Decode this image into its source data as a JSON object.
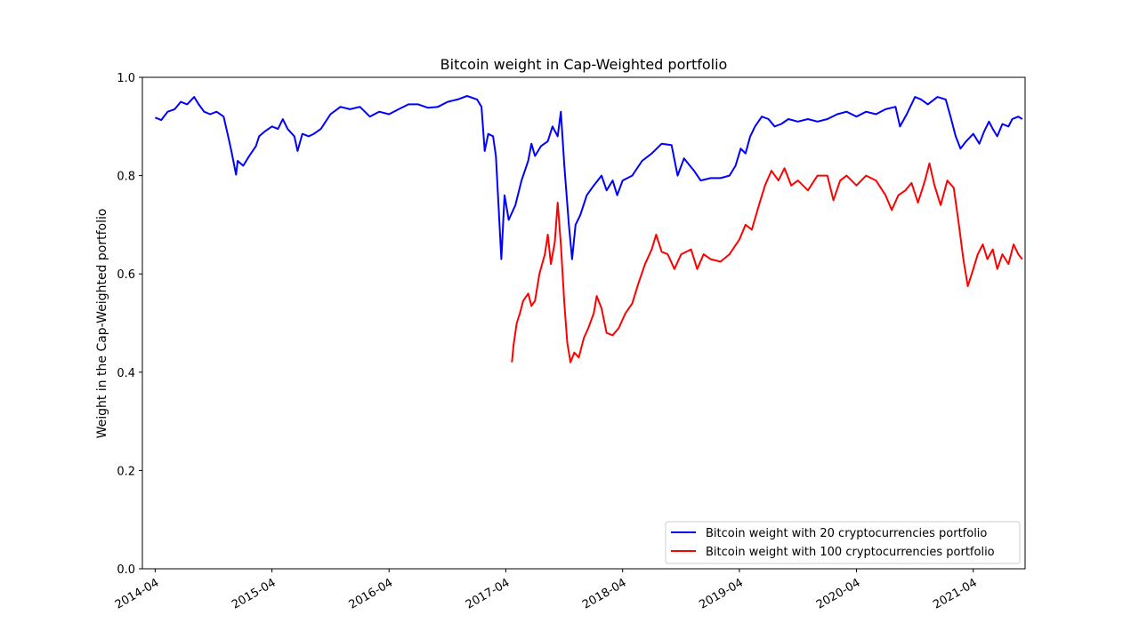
{
  "chart_data": {
    "type": "line",
    "title": "Bitcoin weight in Cap-Weighted portfolio",
    "xlabel": "",
    "ylabel": "Weight in the Cap-Weighted portfolio",
    "ylim": [
      0,
      1.0
    ],
    "xlim": [
      "2014-02-20",
      "2021-09-10"
    ],
    "x_ticks": [
      "2014-04",
      "2015-04",
      "2016-04",
      "2017-04",
      "2018-04",
      "2019-04",
      "2020-04",
      "2021-04"
    ],
    "y_ticks": [
      {
        "value": 0.0,
        "label": "0.0"
      },
      {
        "value": 0.2,
        "label": "0.2"
      },
      {
        "value": 0.4,
        "label": "0.4"
      },
      {
        "value": 0.6,
        "label": "0.6"
      },
      {
        "value": 0.8,
        "label": "0.8"
      },
      {
        "value": 1.0,
        "label": "1.0"
      }
    ],
    "grid": false,
    "legend_position": "lower-right",
    "series": [
      {
        "name": "Bitcoin weight with 20 cryptocurrencies portfolio",
        "color": "#0000ff",
        "points": [
          [
            "2014-04-01",
            0.918
          ],
          [
            "2014-04-20",
            0.913
          ],
          [
            "2014-05-10",
            0.93
          ],
          [
            "2014-06-01",
            0.935
          ],
          [
            "2014-06-20",
            0.95
          ],
          [
            "2014-07-10",
            0.945
          ],
          [
            "2014-08-01",
            0.96
          ],
          [
            "2014-08-15",
            0.945
          ],
          [
            "2014-09-01",
            0.93
          ],
          [
            "2014-09-20",
            0.925
          ],
          [
            "2014-10-10",
            0.93
          ],
          [
            "2014-11-01",
            0.92
          ],
          [
            "2014-11-15",
            0.88
          ],
          [
            "2014-11-25",
            0.85
          ],
          [
            "2014-12-10",
            0.802
          ],
          [
            "2014-12-15",
            0.83
          ],
          [
            "2015-01-01",
            0.82
          ],
          [
            "2015-01-20",
            0.84
          ],
          [
            "2015-02-10",
            0.86
          ],
          [
            "2015-02-20",
            0.88
          ],
          [
            "2015-03-10",
            0.89
          ],
          [
            "2015-04-01",
            0.9
          ],
          [
            "2015-04-20",
            0.895
          ],
          [
            "2015-05-05",
            0.915
          ],
          [
            "2015-05-20",
            0.895
          ],
          [
            "2015-06-10",
            0.88
          ],
          [
            "2015-06-20",
            0.85
          ],
          [
            "2015-07-05",
            0.885
          ],
          [
            "2015-07-25",
            0.88
          ],
          [
            "2015-08-10",
            0.885
          ],
          [
            "2015-09-01",
            0.895
          ],
          [
            "2015-10-01",
            0.925
          ],
          [
            "2015-11-01",
            0.94
          ],
          [
            "2015-12-01",
            0.935
          ],
          [
            "2016-01-01",
            0.94
          ],
          [
            "2016-02-01",
            0.92
          ],
          [
            "2016-03-01",
            0.93
          ],
          [
            "2016-04-01",
            0.925
          ],
          [
            "2016-05-01",
            0.935
          ],
          [
            "2016-06-01",
            0.945
          ],
          [
            "2016-07-01",
            0.945
          ],
          [
            "2016-08-01",
            0.938
          ],
          [
            "2016-09-01",
            0.94
          ],
          [
            "2016-10-01",
            0.95
          ],
          [
            "2016-11-01",
            0.955
          ],
          [
            "2016-12-01",
            0.962
          ],
          [
            "2017-01-01",
            0.955
          ],
          [
            "2017-01-15",
            0.94
          ],
          [
            "2017-01-25",
            0.85
          ],
          [
            "2017-02-05",
            0.885
          ],
          [
            "2017-02-20",
            0.88
          ],
          [
            "2017-03-01",
            0.84
          ],
          [
            "2017-03-10",
            0.73
          ],
          [
            "2017-03-18",
            0.63
          ],
          [
            "2017-03-28",
            0.76
          ],
          [
            "2017-04-10",
            0.71
          ],
          [
            "2017-05-01",
            0.74
          ],
          [
            "2017-05-20",
            0.79
          ],
          [
            "2017-06-10",
            0.83
          ],
          [
            "2017-06-20",
            0.865
          ],
          [
            "2017-07-01",
            0.84
          ],
          [
            "2017-07-20",
            0.86
          ],
          [
            "2017-08-10",
            0.87
          ],
          [
            "2017-08-25",
            0.9
          ],
          [
            "2017-09-10",
            0.88
          ],
          [
            "2017-09-20",
            0.93
          ],
          [
            "2017-10-01",
            0.82
          ],
          [
            "2017-10-15",
            0.7
          ],
          [
            "2017-10-25",
            0.63
          ],
          [
            "2017-11-05",
            0.7
          ],
          [
            "2017-11-20",
            0.72
          ],
          [
            "2017-12-10",
            0.76
          ],
          [
            "2018-01-01",
            0.78
          ],
          [
            "2018-01-25",
            0.8
          ],
          [
            "2018-02-10",
            0.77
          ],
          [
            "2018-03-01",
            0.79
          ],
          [
            "2018-03-15",
            0.76
          ],
          [
            "2018-04-01",
            0.79
          ],
          [
            "2018-05-01",
            0.8
          ],
          [
            "2018-06-01",
            0.83
          ],
          [
            "2018-07-01",
            0.845
          ],
          [
            "2018-08-01",
            0.865
          ],
          [
            "2018-09-01",
            0.862
          ],
          [
            "2018-09-20",
            0.8
          ],
          [
            "2018-10-10",
            0.835
          ],
          [
            "2018-11-10",
            0.81
          ],
          [
            "2018-12-01",
            0.79
          ],
          [
            "2019-01-01",
            0.795
          ],
          [
            "2019-02-01",
            0.795
          ],
          [
            "2019-03-01",
            0.8
          ],
          [
            "2019-03-20",
            0.82
          ],
          [
            "2019-04-05",
            0.855
          ],
          [
            "2019-04-20",
            0.845
          ],
          [
            "2019-05-05",
            0.88
          ],
          [
            "2019-05-20",
            0.9
          ],
          [
            "2019-06-10",
            0.92
          ],
          [
            "2019-07-01",
            0.915
          ],
          [
            "2019-07-20",
            0.9
          ],
          [
            "2019-08-10",
            0.905
          ],
          [
            "2019-09-01",
            0.915
          ],
          [
            "2019-10-01",
            0.91
          ],
          [
            "2019-11-01",
            0.915
          ],
          [
            "2019-12-01",
            0.91
          ],
          [
            "2020-01-01",
            0.915
          ],
          [
            "2020-02-01",
            0.925
          ],
          [
            "2020-03-01",
            0.93
          ],
          [
            "2020-04-01",
            0.92
          ],
          [
            "2020-05-01",
            0.93
          ],
          [
            "2020-06-01",
            0.925
          ],
          [
            "2020-07-01",
            0.935
          ],
          [
            "2020-08-01",
            0.94
          ],
          [
            "2020-08-15",
            0.9
          ],
          [
            "2020-09-05",
            0.925
          ],
          [
            "2020-10-01",
            0.96
          ],
          [
            "2020-10-20",
            0.955
          ],
          [
            "2020-11-10",
            0.945
          ],
          [
            "2020-12-10",
            0.96
          ],
          [
            "2021-01-05",
            0.955
          ],
          [
            "2021-01-20",
            0.92
          ],
          [
            "2021-02-05",
            0.88
          ],
          [
            "2021-02-20",
            0.855
          ],
          [
            "2021-03-10",
            0.87
          ],
          [
            "2021-04-01",
            0.885
          ],
          [
            "2021-04-20",
            0.865
          ],
          [
            "2021-05-05",
            0.89
          ],
          [
            "2021-05-20",
            0.91
          ],
          [
            "2021-06-01",
            0.895
          ],
          [
            "2021-06-15",
            0.88
          ],
          [
            "2021-07-01",
            0.905
          ],
          [
            "2021-07-20",
            0.9
          ],
          [
            "2021-08-01",
            0.915
          ],
          [
            "2021-08-20",
            0.92
          ],
          [
            "2021-09-01",
            0.915
          ]
        ]
      },
      {
        "name": "Bitcoin weight with 100 cryptocurrencies portfolio",
        "color": "#ff0000",
        "points": [
          [
            "2017-04-20",
            0.42
          ],
          [
            "2017-04-25",
            0.455
          ],
          [
            "2017-05-05",
            0.5
          ],
          [
            "2017-05-15",
            0.52
          ],
          [
            "2017-05-25",
            0.545
          ],
          [
            "2017-06-10",
            0.56
          ],
          [
            "2017-06-20",
            0.535
          ],
          [
            "2017-07-01",
            0.545
          ],
          [
            "2017-07-15",
            0.6
          ],
          [
            "2017-08-01",
            0.64
          ],
          [
            "2017-08-10",
            0.68
          ],
          [
            "2017-08-20",
            0.62
          ],
          [
            "2017-09-01",
            0.665
          ],
          [
            "2017-09-10",
            0.745
          ],
          [
            "2017-09-20",
            0.66
          ],
          [
            "2017-10-01",
            0.54
          ],
          [
            "2017-10-10",
            0.46
          ],
          [
            "2017-10-20",
            0.42
          ],
          [
            "2017-11-01",
            0.44
          ],
          [
            "2017-11-15",
            0.43
          ],
          [
            "2017-12-01",
            0.47
          ],
          [
            "2017-12-15",
            0.49
          ],
          [
            "2018-01-01",
            0.52
          ],
          [
            "2018-01-10",
            0.555
          ],
          [
            "2018-01-25",
            0.53
          ],
          [
            "2018-02-10",
            0.48
          ],
          [
            "2018-03-01",
            0.475
          ],
          [
            "2018-03-20",
            0.49
          ],
          [
            "2018-04-10",
            0.52
          ],
          [
            "2018-05-01",
            0.54
          ],
          [
            "2018-05-20",
            0.58
          ],
          [
            "2018-06-10",
            0.62
          ],
          [
            "2018-07-01",
            0.65
          ],
          [
            "2018-07-15",
            0.68
          ],
          [
            "2018-08-01",
            0.645
          ],
          [
            "2018-08-20",
            0.64
          ],
          [
            "2018-09-10",
            0.61
          ],
          [
            "2018-10-01",
            0.64
          ],
          [
            "2018-11-01",
            0.65
          ],
          [
            "2018-11-20",
            0.61
          ],
          [
            "2018-12-10",
            0.64
          ],
          [
            "2019-01-01",
            0.63
          ],
          [
            "2019-02-01",
            0.625
          ],
          [
            "2019-03-01",
            0.64
          ],
          [
            "2019-04-01",
            0.67
          ],
          [
            "2019-04-20",
            0.7
          ],
          [
            "2019-05-10",
            0.69
          ],
          [
            "2019-06-01",
            0.74
          ],
          [
            "2019-06-20",
            0.78
          ],
          [
            "2019-07-10",
            0.81
          ],
          [
            "2019-08-01",
            0.79
          ],
          [
            "2019-08-20",
            0.815
          ],
          [
            "2019-09-10",
            0.78
          ],
          [
            "2019-10-01",
            0.79
          ],
          [
            "2019-11-01",
            0.77
          ],
          [
            "2019-12-01",
            0.8
          ],
          [
            "2020-01-01",
            0.8
          ],
          [
            "2020-01-20",
            0.75
          ],
          [
            "2020-02-10",
            0.79
          ],
          [
            "2020-03-01",
            0.8
          ],
          [
            "2020-04-01",
            0.78
          ],
          [
            "2020-05-01",
            0.8
          ],
          [
            "2020-06-01",
            0.79
          ],
          [
            "2020-07-01",
            0.76
          ],
          [
            "2020-07-20",
            0.73
          ],
          [
            "2020-08-10",
            0.76
          ],
          [
            "2020-09-01",
            0.77
          ],
          [
            "2020-09-20",
            0.785
          ],
          [
            "2020-10-10",
            0.745
          ],
          [
            "2020-11-01",
            0.79
          ],
          [
            "2020-11-15",
            0.825
          ],
          [
            "2020-12-01",
            0.78
          ],
          [
            "2020-12-20",
            0.74
          ],
          [
            "2021-01-10",
            0.79
          ],
          [
            "2021-01-30",
            0.775
          ],
          [
            "2021-02-15",
            0.7
          ],
          [
            "2021-03-01",
            0.63
          ],
          [
            "2021-03-15",
            0.575
          ],
          [
            "2021-04-01",
            0.61
          ],
          [
            "2021-04-15",
            0.64
          ],
          [
            "2021-05-01",
            0.66
          ],
          [
            "2021-05-15",
            0.63
          ],
          [
            "2021-06-01",
            0.65
          ],
          [
            "2021-06-15",
            0.61
          ],
          [
            "2021-07-01",
            0.64
          ],
          [
            "2021-07-20",
            0.62
          ],
          [
            "2021-08-05",
            0.66
          ],
          [
            "2021-08-20",
            0.64
          ],
          [
            "2021-09-01",
            0.63
          ]
        ]
      }
    ]
  }
}
